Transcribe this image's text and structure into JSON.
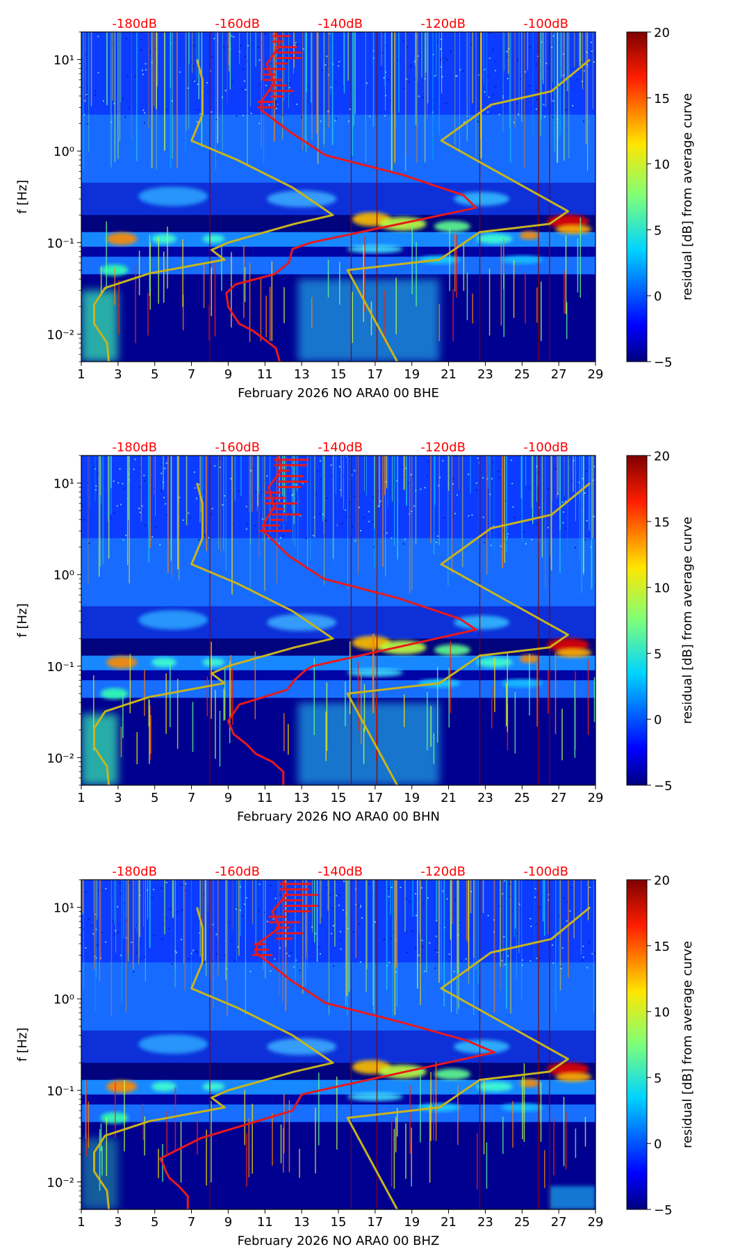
{
  "colors": {
    "noise_curve": "#e8191c",
    "model_curve": "#c8b41e",
    "db_labels": "#ff0000",
    "axis": "#000000"
  },
  "shared": {
    "ylabel": "f [Hz]",
    "colorbar_label": "residual [dB] from average curve",
    "colorbar_ticks": [
      "20",
      "15",
      "10",
      "5",
      "0",
      "−5"
    ],
    "colorbar_range": [
      -5,
      20
    ],
    "x_ticks": [
      "1",
      "3",
      "5",
      "7",
      "9",
      "11",
      "13",
      "15",
      "17",
      "19",
      "21",
      "23",
      "25",
      "27",
      "29"
    ],
    "x_range": [
      1,
      29
    ],
    "y_ticks": [
      "10¹",
      "10⁰",
      "10⁻¹",
      "10⁻²"
    ],
    "y_tick_values": [
      10,
      1,
      0.1,
      0.01
    ],
    "y_range_hz": [
      0.005,
      20
    ],
    "db_scale_labels": [
      "-180dB",
      "-160dB",
      "-140dB",
      "-120dB",
      "-100dB"
    ],
    "db_scale_positions_day": [
      3.9,
      9.5,
      15.1,
      20.7,
      26.3
    ],
    "model_curve": {
      "name": "reference noise model",
      "points": [
        [
          2.5,
          0.005
        ],
        [
          2.4,
          0.008
        ],
        [
          1.7,
          0.013
        ],
        [
          1.7,
          0.021
        ],
        [
          2.3,
          0.032
        ],
        [
          4.7,
          0.046
        ],
        [
          8.8,
          0.065
        ],
        [
          8.1,
          0.083
        ],
        [
          9.0,
          0.1
        ],
        [
          12.6,
          0.16
        ],
        [
          14.7,
          0.2
        ],
        [
          12.5,
          0.4
        ],
        [
          9.5,
          0.8
        ],
        [
          7.0,
          1.3
        ],
        [
          7.6,
          2.5
        ],
        [
          7.6,
          6
        ],
        [
          7.3,
          10
        ]
      ]
    },
    "model_curve_high": {
      "name": "reference noise model (high)",
      "points": [
        [
          18.2,
          0.005
        ],
        [
          15.5,
          0.05
        ],
        [
          20.5,
          0.065
        ],
        [
          22.7,
          0.13
        ],
        [
          26.5,
          0.16
        ],
        [
          27.5,
          0.22
        ],
        [
          20.6,
          1.3
        ],
        [
          23.3,
          3.2
        ],
        [
          26.6,
          4.5
        ],
        [
          28.7,
          10
        ]
      ]
    }
  },
  "chart_data": [
    {
      "type": "heatmap",
      "title": "",
      "xlabel": "February 2026 NO ARA0 00 BHE",
      "ylabel": "f [Hz]",
      "x_unit": "day of month",
      "y_scale": "log",
      "series": [
        {
          "name": "average noise curve",
          "points": [
            [
              11.8,
              0.005
            ],
            [
              11.6,
              0.007
            ],
            [
              10.9,
              0.009
            ],
            [
              10.3,
              0.011
            ],
            [
              9.6,
              0.013
            ],
            [
              9.3,
              0.016
            ],
            [
              9.0,
              0.02
            ],
            [
              8.9,
              0.028
            ],
            [
              9.4,
              0.035
            ],
            [
              11.5,
              0.045
            ],
            [
              12.3,
              0.06
            ],
            [
              12.5,
              0.085
            ],
            [
              13.5,
              0.1
            ],
            [
              22.5,
              0.24
            ],
            [
              21.8,
              0.33
            ],
            [
              18.5,
              0.55
            ],
            [
              14.3,
              0.9
            ],
            [
              12.4,
              1.6
            ],
            [
              10.8,
              2.8
            ],
            [
              10.8,
              3.5
            ],
            [
              11.5,
              5.5
            ],
            [
              11.1,
              9
            ],
            [
              11.8,
              14
            ],
            [
              11.6,
              20
            ]
          ]
        }
      ]
    },
    {
      "type": "heatmap",
      "title": "",
      "xlabel": "February 2026 NO ARA0 00 BHN",
      "ylabel": "f [Hz]",
      "x_unit": "day of month",
      "y_scale": "log",
      "series": [
        {
          "name": "average noise curve",
          "points": [
            [
              12.0,
              0.005
            ],
            [
              12.0,
              0.007
            ],
            [
              11.4,
              0.009
            ],
            [
              10.5,
              0.011
            ],
            [
              10.0,
              0.014
            ],
            [
              9.3,
              0.018
            ],
            [
              9.0,
              0.025
            ],
            [
              9.6,
              0.038
            ],
            [
              12.2,
              0.055
            ],
            [
              12.6,
              0.07
            ],
            [
              13.2,
              0.09
            ],
            [
              13.6,
              0.1
            ],
            [
              22.5,
              0.25
            ],
            [
              21.6,
              0.33
            ],
            [
              18.3,
              0.55
            ],
            [
              14.2,
              0.9
            ],
            [
              12.3,
              1.6
            ],
            [
              10.9,
              3.0
            ],
            [
              11.0,
              3.8
            ],
            [
              11.5,
              5.5
            ],
            [
              11.2,
              9
            ],
            [
              11.9,
              14
            ],
            [
              11.7,
              20
            ]
          ]
        }
      ]
    },
    {
      "type": "heatmap",
      "title": "",
      "xlabel": "February 2026 NO ARA0 00 BHZ",
      "ylabel": "f [Hz]",
      "x_unit": "day of month",
      "y_scale": "log",
      "series": [
        {
          "name": "average noise curve",
          "points": [
            [
              6.8,
              0.005
            ],
            [
              6.8,
              0.007
            ],
            [
              6.3,
              0.009
            ],
            [
              5.8,
              0.011
            ],
            [
              5.6,
              0.013
            ],
            [
              5.5,
              0.015
            ],
            [
              5.3,
              0.018
            ],
            [
              7.5,
              0.03
            ],
            [
              12.5,
              0.06
            ],
            [
              13.0,
              0.09
            ],
            [
              14.0,
              0.1
            ],
            [
              23.5,
              0.26
            ],
            [
              22.0,
              0.35
            ],
            [
              18.5,
              0.55
            ],
            [
              14.3,
              0.9
            ],
            [
              12.4,
              1.6
            ],
            [
              10.5,
              3.2
            ],
            [
              10.6,
              4.0
            ],
            [
              11.8,
              6
            ],
            [
              11.4,
              9
            ],
            [
              12.2,
              14
            ],
            [
              12.0,
              20
            ]
          ]
        }
      ]
    }
  ]
}
